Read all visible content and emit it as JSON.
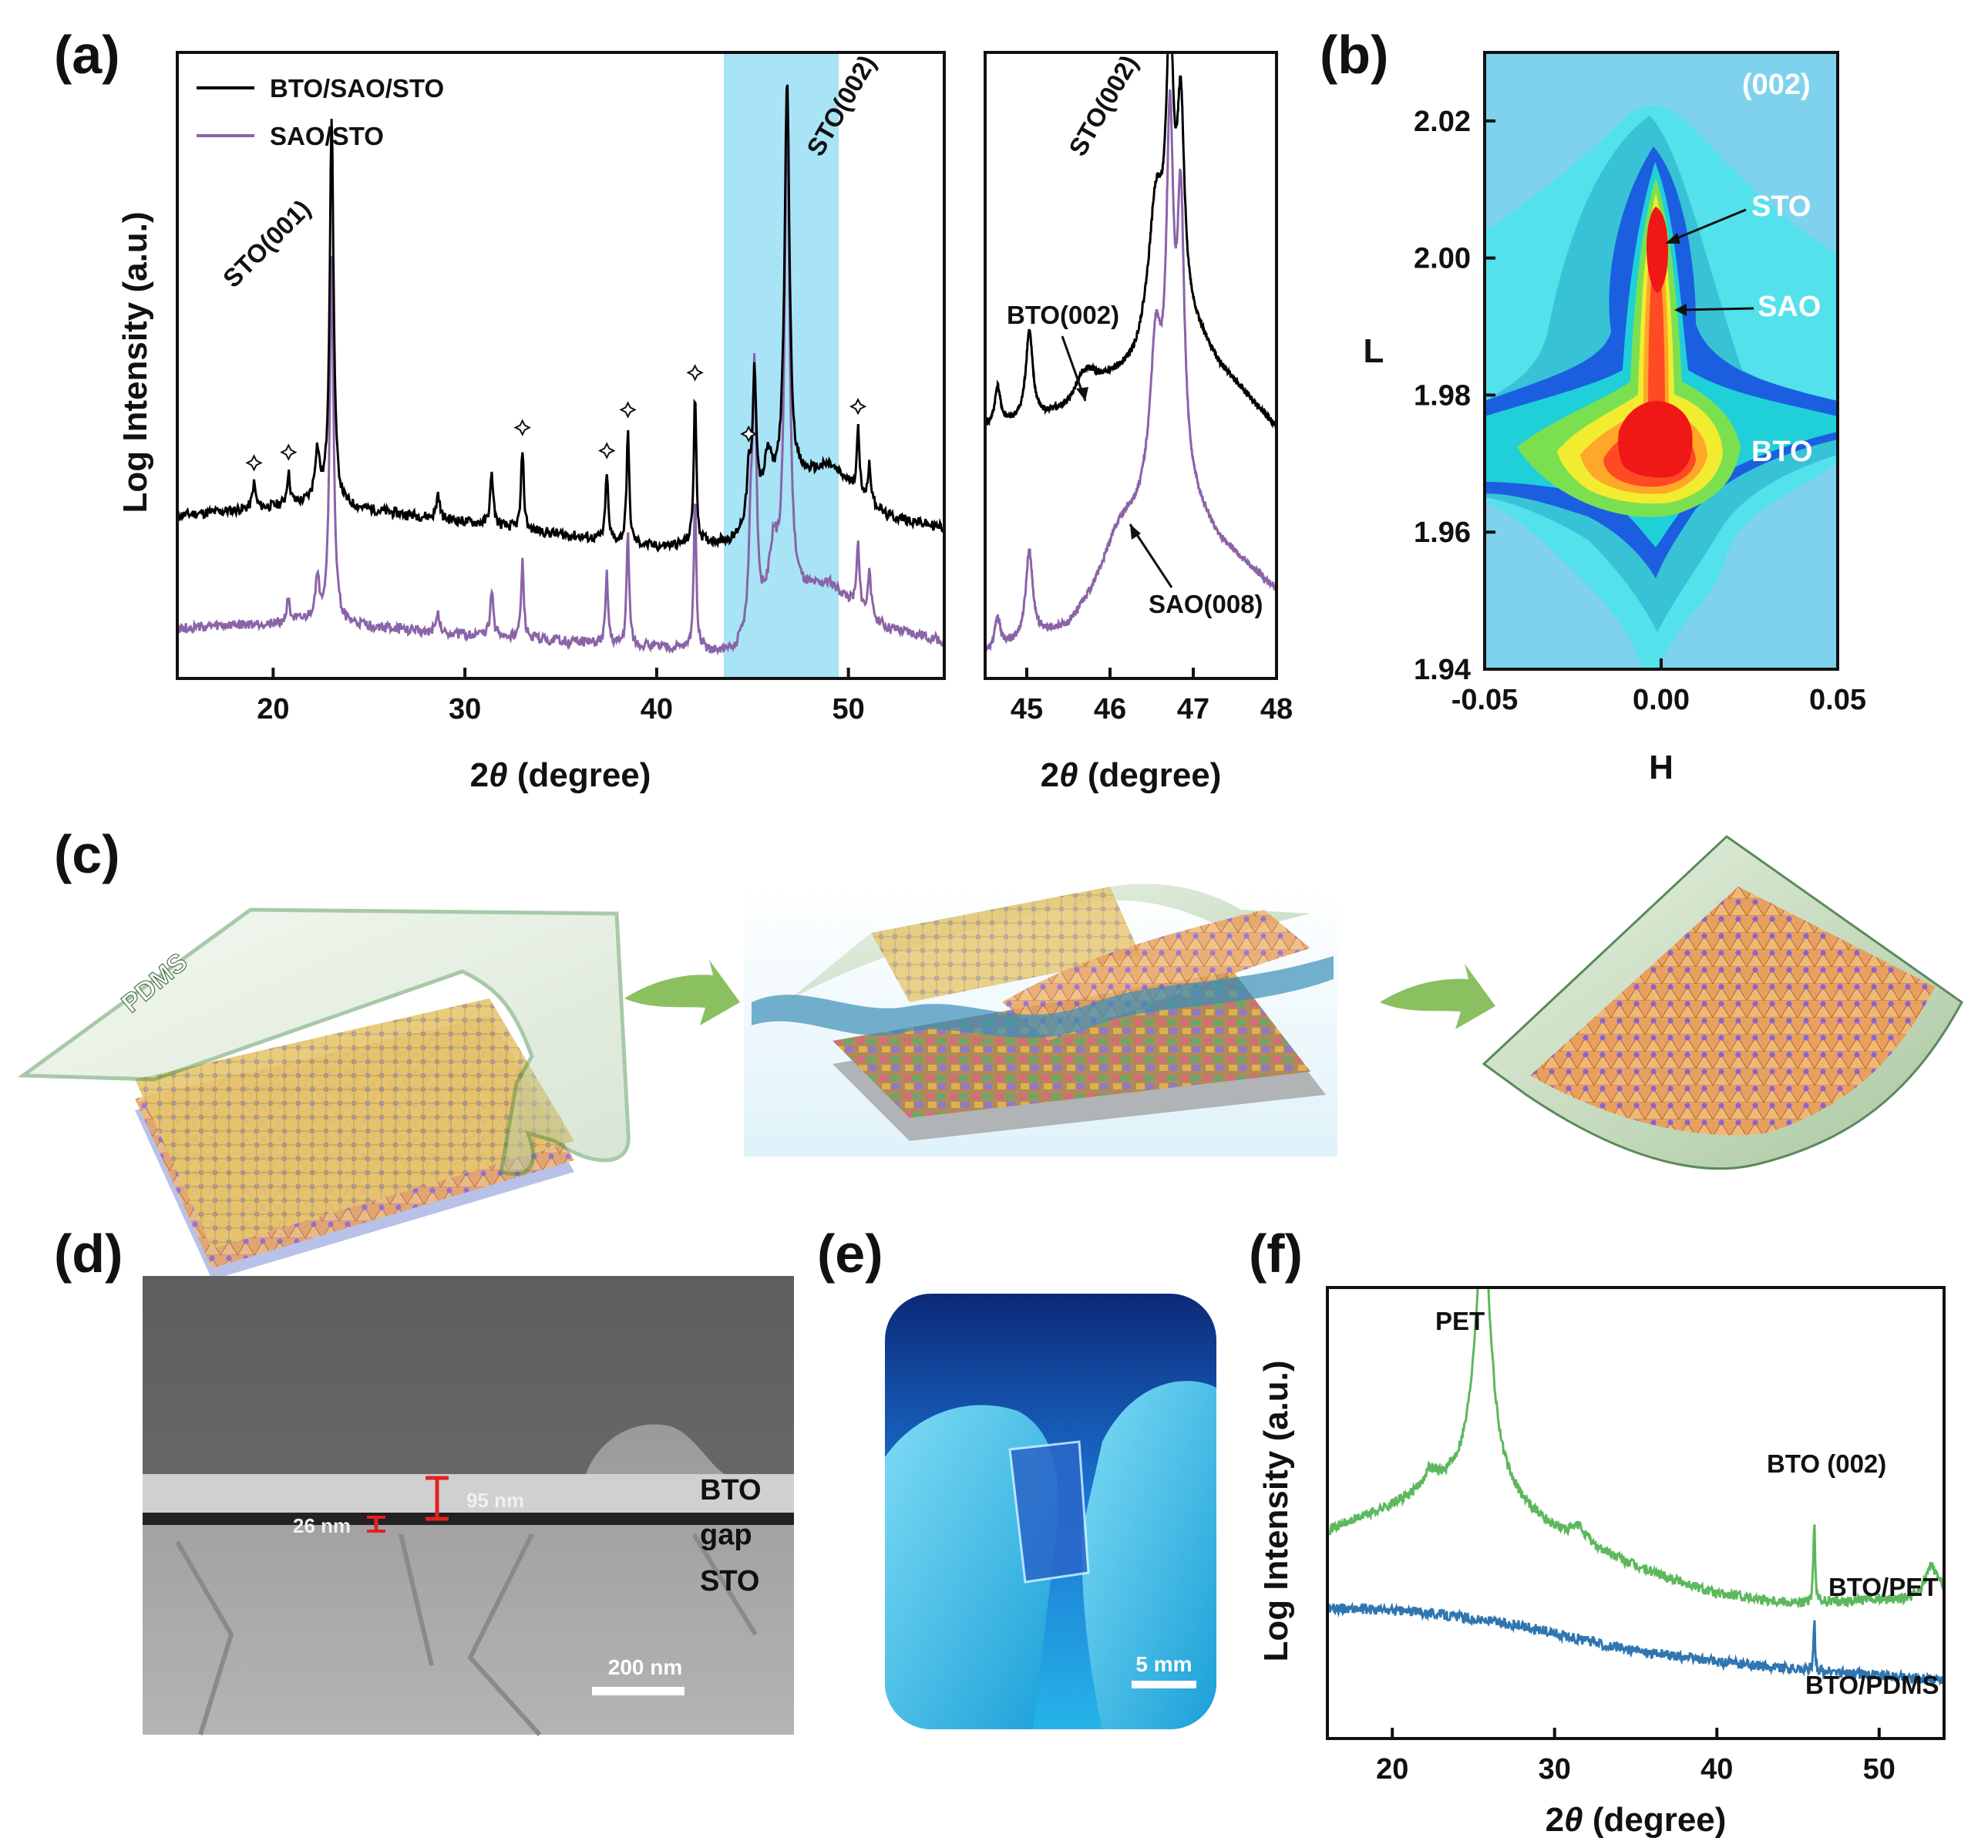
{
  "panel_labels": {
    "a": "(a)",
    "b": "(b)",
    "c": "(c)",
    "d": "(d)",
    "e": "(e)",
    "f": "(f)"
  },
  "colors": {
    "bto_sao_sto": "#000000",
    "sao_sto": "#8a63a8",
    "highlight": "#a8e4f5",
    "bto_pet": "#5cb85c",
    "bto_pdms": "#2f75b0"
  },
  "chart_data": [
    {
      "id": "a-main",
      "type": "line",
      "xlabel_pre": "2",
      "xlabel_theta": "θ",
      "xlabel_post": " (degree)",
      "ylabel": "Log Intensity (a.u.)",
      "xlim": [
        15,
        55
      ],
      "ylim": [
        0,
        100
      ],
      "xticks": [
        20,
        30,
        40,
        50
      ],
      "highlight_range": [
        43.5,
        49.5
      ],
      "legend": [
        "BTO/SAO/STO",
        "SAO/STO"
      ],
      "annotations": [
        "STO(001)",
        "STO(002)"
      ],
      "star_marker_x": [
        19.0,
        20.8,
        33.0,
        37.4,
        38.5,
        42.0,
        44.8,
        50.5
      ],
      "series": [
        {
          "name": "BTO/SAO/STO",
          "baseline": [
            [
              15,
              26
            ],
            [
              22,
              28
            ],
            [
              30,
              25
            ],
            [
              40,
              21
            ],
            [
              44,
              22
            ],
            [
              46,
              30
            ],
            [
              49,
              34
            ],
            [
              52,
              26
            ],
            [
              55,
              24
            ]
          ],
          "peaks": [
            [
              19.0,
              4,
              0.1
            ],
            [
              20.8,
              5,
              0.1
            ],
            [
              22.3,
              8,
              0.15
            ],
            [
              23.05,
              62,
              0.12
            ],
            [
              28.6,
              4,
              0.1
            ],
            [
              31.4,
              8,
              0.1
            ],
            [
              33.0,
              13,
              0.08
            ],
            [
              37.4,
              11,
              0.08
            ],
            [
              38.5,
              18,
              0.08
            ],
            [
              42.0,
              24,
              0.08
            ],
            [
              44.8,
              7,
              0.1
            ],
            [
              45.1,
              22,
              0.12
            ],
            [
              45.8,
              6,
              0.2
            ],
            [
              46.8,
              65,
              0.15
            ],
            [
              50.5,
              10,
              0.08
            ],
            [
              51.1,
              6,
              0.08
            ]
          ]
        },
        {
          "name": "SAO/STO",
          "baseline": [
            [
              15,
              8
            ],
            [
              22,
              9
            ],
            [
              30,
              7
            ],
            [
              40,
              5
            ],
            [
              44,
              4
            ],
            [
              46,
              12
            ],
            [
              49,
              15
            ],
            [
              52,
              8
            ],
            [
              55,
              6
            ]
          ],
          "peaks": [
            [
              20.8,
              4,
              0.1
            ],
            [
              22.3,
              6,
              0.15
            ],
            [
              23.05,
              58,
              0.12
            ],
            [
              28.6,
              3,
              0.1
            ],
            [
              31.4,
              7,
              0.1
            ],
            [
              33.0,
              12,
              0.08
            ],
            [
              37.4,
              11,
              0.08
            ],
            [
              38.5,
              18,
              0.08
            ],
            [
              42.0,
              24,
              0.08
            ],
            [
              44.9,
              13,
              0.1
            ],
            [
              45.1,
              40,
              0.12
            ],
            [
              46.1,
              8,
              0.25
            ],
            [
              46.8,
              78,
              0.15
            ],
            [
              50.5,
              10,
              0.08
            ],
            [
              51.1,
              8,
              0.08
            ]
          ]
        }
      ]
    },
    {
      "id": "a-zoom",
      "type": "line",
      "xlabel_pre": "2",
      "xlabel_theta": "θ",
      "xlabel_post": " (degree)",
      "xlim": [
        44.5,
        48
      ],
      "ylim": [
        0,
        100
      ],
      "xticks": [
        45,
        46,
        47,
        48
      ],
      "annotations": [
        "STO(002)",
        "BTO(002)",
        "SAO(008)"
      ],
      "series": [
        {
          "name": "BTO/SAO/STO",
          "baseline": [
            [
              44.5,
              40
            ],
            [
              45.5,
              42
            ],
            [
              46.3,
              50
            ],
            [
              46.7,
              62
            ],
            [
              47.3,
              50
            ],
            [
              48,
              40
            ]
          ],
          "peaks": [
            [
              44.65,
              6,
              0.04
            ],
            [
              45.03,
              14,
              0.05
            ],
            [
              45.7,
              5,
              0.18
            ],
            [
              46.55,
              18,
              0.1
            ],
            [
              46.72,
              38,
              0.05
            ],
            [
              46.85,
              30,
              0.05
            ]
          ]
        },
        {
          "name": "SAO/STO",
          "baseline": [
            [
              44.5,
              4
            ],
            [
              45.5,
              8
            ],
            [
              46.1,
              18
            ],
            [
              46.7,
              34
            ],
            [
              47.3,
              22
            ],
            [
              48,
              14
            ]
          ],
          "peaks": [
            [
              44.65,
              5,
              0.04
            ],
            [
              45.03,
              14,
              0.05
            ],
            [
              46.1,
              6,
              0.2
            ],
            [
              46.55,
              22,
              0.08
            ],
            [
              46.72,
              50,
              0.05
            ],
            [
              46.85,
              42,
              0.05
            ]
          ]
        }
      ]
    },
    {
      "id": "b",
      "type": "heatmap",
      "title": "(002)",
      "xlabel": "H",
      "ylabel": "L",
      "xlim": [
        -0.05,
        0.05
      ],
      "ylim": [
        1.94,
        2.03
      ],
      "xticks": [
        "-0.05",
        "0.00",
        "0.05"
      ],
      "yticks": [
        "1.94",
        "1.96",
        "1.98",
        "2.00",
        "2.02"
      ],
      "peaks": [
        {
          "label": "STO",
          "H": 0.0,
          "L": 2.0
        },
        {
          "label": "SAO",
          "H": 0.002,
          "L": 1.992
        },
        {
          "label": "BTO",
          "H": 0.0,
          "L": 1.972
        }
      ]
    },
    {
      "id": "f",
      "type": "line",
      "xlabel_pre": "2",
      "xlabel_theta": "θ",
      "xlabel_post": " (degree)",
      "ylabel": "Log Intensity (a.u.)",
      "xlim": [
        16,
        54
      ],
      "ylim": [
        0,
        100
      ],
      "xticks": [
        20,
        30,
        40,
        50
      ],
      "annotations": [
        "PET",
        "BTO (002)"
      ],
      "series": [
        {
          "name": "BTO/PET",
          "baseline": [
            [
              16,
              46
            ],
            [
              22,
              54
            ],
            [
              25,
              58
            ],
            [
              30,
              46
            ],
            [
              35,
              38
            ],
            [
              40,
              32
            ],
            [
              45,
              30
            ],
            [
              52,
              31
            ],
            [
              54,
              33
            ]
          ],
          "peaks": [
            [
              22.3,
              4,
              0.5
            ],
            [
              25.6,
              56,
              0.6
            ],
            [
              31.5,
              3,
              0.5
            ],
            [
              46.0,
              18,
              0.06
            ],
            [
              53.2,
              6,
              0.4
            ]
          ]
        },
        {
          "name": "BTO/PDMS",
          "baseline": [
            [
              16,
              29
            ],
            [
              22,
              28
            ],
            [
              28,
              25
            ],
            [
              34,
              20
            ],
            [
              40,
              17
            ],
            [
              46,
              15
            ],
            [
              54,
              13
            ]
          ],
          "peaks": [
            [
              46.0,
              12,
              0.05
            ]
          ]
        }
      ]
    }
  ],
  "schematic_c": {
    "label": "PDMS"
  },
  "sem_d": {
    "labels": [
      "BTO",
      "gap",
      "STO"
    ],
    "thickness1": "95 nm",
    "thickness2": "26 nm",
    "scale": "200 nm"
  },
  "photo_e": {
    "scale": "5 mm"
  }
}
